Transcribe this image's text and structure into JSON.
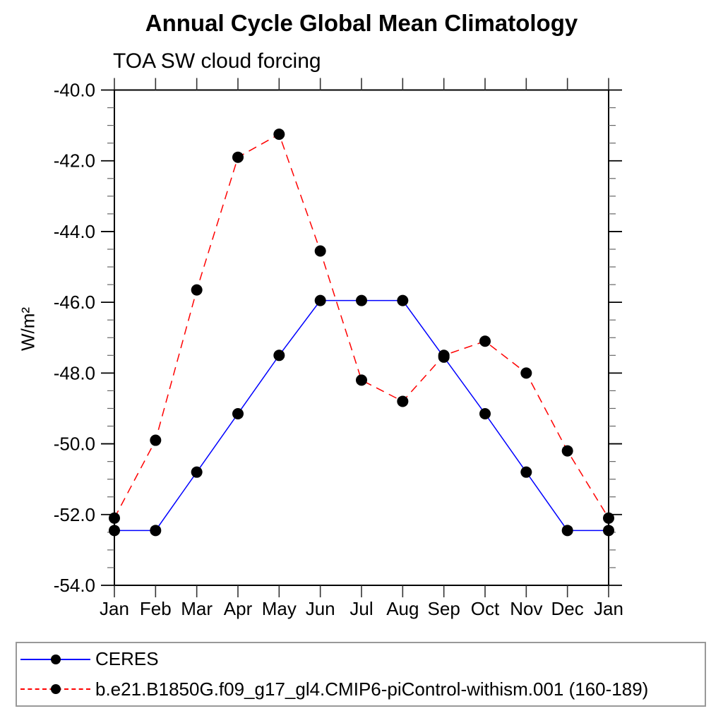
{
  "title": "Annual Cycle Global Mean Climatology",
  "subtitle": "TOA SW cloud forcing",
  "colors": {
    "series1": "#0000ff",
    "series2": "#ff0000",
    "marker": "#000000",
    "frame": "#000000",
    "legend_border": "#999999"
  },
  "chart_data": {
    "type": "line",
    "title": "Annual Cycle Global Mean Climatology",
    "subtitle": "TOA SW cloud forcing",
    "xlabel": "",
    "ylabel": "W/m²",
    "categories": [
      "Jan",
      "Feb",
      "Mar",
      "Apr",
      "May",
      "Jun",
      "Jul",
      "Aug",
      "Sep",
      "Oct",
      "Nov",
      "Dec",
      "Jan"
    ],
    "series": [
      {
        "name": "CERES",
        "color": "#0000ff",
        "style": "solid",
        "marker": "circle",
        "values": [
          -52.45,
          -52.45,
          -50.8,
          -49.15,
          -47.5,
          -45.95,
          -45.95,
          -45.95,
          -47.55,
          -49.15,
          -50.8,
          -52.45,
          -52.45
        ]
      },
      {
        "name": "b.e21.B1850G.f09_g17_gl4.CMIP6-piControl-withism.001 (160-189)",
        "color": "#ff0000",
        "style": "dashed",
        "marker": "circle",
        "values": [
          -52.1,
          -49.9,
          -45.65,
          -41.9,
          -41.25,
          -44.55,
          -48.2,
          -48.8,
          -47.5,
          -47.1,
          -48.0,
          -50.2,
          -52.1
        ]
      }
    ],
    "ylim": [
      -54.0,
      -40.0
    ],
    "y_major_step": 2.0,
    "y_minor_step": 0.5,
    "y_ticks": [
      "-54.0",
      "-52.0",
      "-50.0",
      "-48.0",
      "-46.0",
      "-44.0",
      "-42.0",
      "-40.0"
    ],
    "grid": false,
    "legend_position": "bottom"
  }
}
